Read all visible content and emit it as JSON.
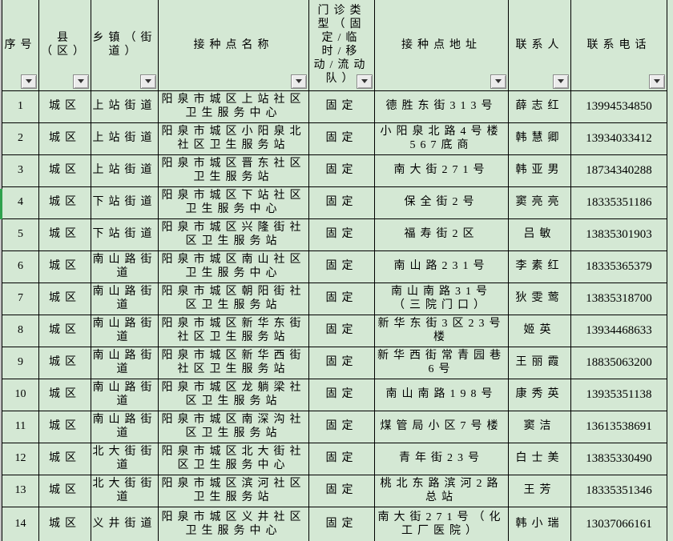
{
  "table": {
    "columns": [
      {
        "key": "index",
        "label": "序号"
      },
      {
        "key": "county",
        "label": "县（区）"
      },
      {
        "key": "township",
        "label": "乡镇（街道）"
      },
      {
        "key": "site-name",
        "label": "接种点名称"
      },
      {
        "key": "clinic-type",
        "label": "门诊类型（固定/临时/移动/流动队）"
      },
      {
        "key": "address",
        "label": "接种点地址"
      },
      {
        "key": "contact",
        "label": "联系人"
      },
      {
        "key": "phone",
        "label": "联系电话"
      }
    ],
    "rows": [
      [
        "1",
        "城区",
        "上站街道",
        "阳泉市城区上站社区卫生服务中心",
        "固定",
        "德胜东街313号",
        "薛志红",
        "13994534850"
      ],
      [
        "2",
        "城区",
        "上站街道",
        "阳泉市城区小阳泉北社区卫生服务站",
        "固定",
        "小阳泉北路4号楼567底商",
        "韩慧卿",
        "13934033412"
      ],
      [
        "3",
        "城区",
        "上站街道",
        "阳泉市城区晋东社区卫生服务站",
        "固定",
        "南大街271号",
        "韩亚男",
        "18734340288"
      ],
      [
        "4",
        "城区",
        "下站街道",
        "阳泉市城区下站社区卫生服务中心",
        "固定",
        "保全街2号",
        "窦亮亮",
        "18335351186"
      ],
      [
        "5",
        "城区",
        "下站街道",
        "阳泉市城区兴隆街社区卫生服务站",
        "固定",
        "福寿街2区",
        "吕敏",
        "13835301903"
      ],
      [
        "6",
        "城区",
        "南山路街道",
        "阳泉市城区南山社区卫生服务中心",
        "固定",
        "南山路231号",
        "李素红",
        "18335365379"
      ],
      [
        "7",
        "城区",
        "南山路街道",
        "阳泉市城区朝阳街社区卫生服务站",
        "固定",
        "南山南路31号（三院门口）",
        "狄雯莺",
        "13835318700"
      ],
      [
        "8",
        "城区",
        "南山路街道",
        "阳泉市城区新华东街社区卫生服务站",
        "固定",
        "新华东街3区23号楼",
        "姬英",
        "13934468633"
      ],
      [
        "9",
        "城区",
        "南山路街道",
        "阳泉市城区新华西街社区卫生服务站",
        "固定",
        "新华西街常青园巷6号",
        "王丽霞",
        "18835063200"
      ],
      [
        "10",
        "城区",
        "南山路街道",
        "阳泉市城区龙躺梁社区卫生服务站",
        "固定",
        "南山南路198号",
        "康秀英",
        "13935351138"
      ],
      [
        "11",
        "城区",
        "南山路街道",
        "阳泉市城区南深沟社区卫生服务站",
        "固定",
        "煤管局小区7号楼",
        "窦洁",
        "13613538691"
      ],
      [
        "12",
        "城区",
        "北大街街道",
        "阳泉市城区北大街社区卫生服务中心",
        "固定",
        "青年街23号",
        "白士美",
        "13835330490"
      ],
      [
        "13",
        "城区",
        "北大街街道",
        "阳泉市城区滨河社区卫生服务站",
        "固定",
        "桃北东路滨河2路总站",
        "王芳",
        "18335351346"
      ],
      [
        "14",
        "城区",
        "义井街道",
        "阳泉市城区义井社区卫生服务中心",
        "固定",
        "南大街271号（化工厂医院）",
        "韩小瑞",
        "13037066161"
      ]
    ]
  },
  "selection": {
    "row": "4"
  },
  "icons": {
    "filter_dropdown": "triangle-down"
  },
  "colors": {
    "cell_background": "#d4e8d4",
    "grid_border": "#000000",
    "left_edge_strip": "#c3c3c3",
    "selection_stripe": "#2fa14d",
    "filter_button_face": "#ebebeb",
    "filter_button_border": "#888888",
    "filter_arrow": "#333333"
  }
}
